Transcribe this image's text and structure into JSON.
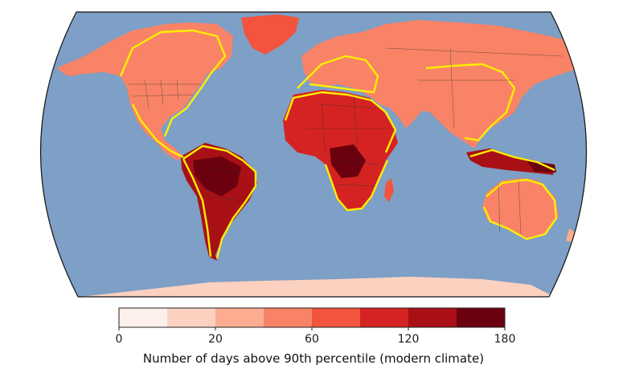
{
  "colorbar": {
    "colors": [
      "#fdf0eb",
      "#fcd1c0",
      "#fbac91",
      "#f98366",
      "#f2543d",
      "#d42322",
      "#a81016",
      "#6b010e"
    ],
    "tick_labels": [
      "0",
      "20",
      "60",
      "120",
      "180"
    ],
    "title": "Number of days above 90th percentile (modern climate)"
  },
  "palette": {
    "ocean": "#7e9fc6",
    "border_highlight": "#ffee00",
    "outline": "#111111"
  }
}
